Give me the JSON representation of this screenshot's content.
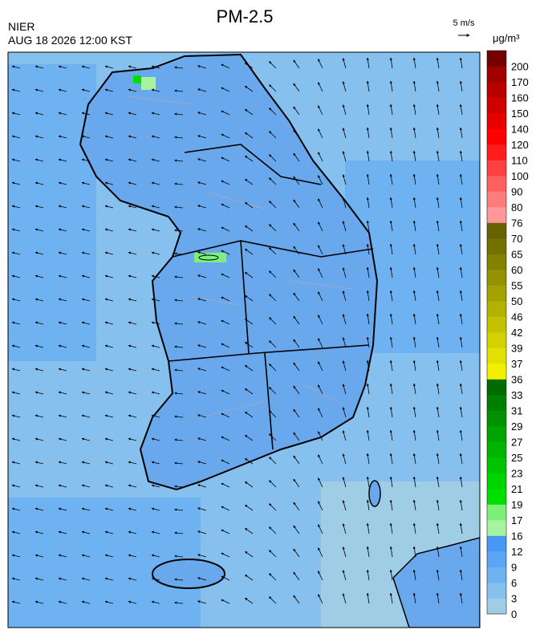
{
  "header": {
    "title": "PM-2.5",
    "agency": "NIER",
    "timestamp": "AUG 18 2026 12:00 KST",
    "wind_scale": "5 m/s",
    "unit": "μg/m³"
  },
  "colorbar": {
    "labels": [
      0,
      3,
      6,
      9,
      12,
      16,
      17,
      19,
      21,
      23,
      25,
      27,
      29,
      31,
      33,
      36,
      37,
      39,
      42,
      46,
      50,
      55,
      60,
      65,
      70,
      76,
      80,
      90,
      100,
      110,
      120,
      140,
      150,
      160,
      170,
      200
    ],
    "colors": [
      "#9fcde6",
      "#86c0ee",
      "#6eb2f2",
      "#5aa5f4",
      "#4698f4",
      "#a6f3a0",
      "#7cf07a",
      "#00e000",
      "#00d400",
      "#00c400",
      "#00b400",
      "#00a400",
      "#009200",
      "#008000",
      "#006c00",
      "#f2f000",
      "#e2e000",
      "#d2d200",
      "#c4c200",
      "#b4b200",
      "#a4a200",
      "#949200",
      "#848000",
      "#747000",
      "#6a6200",
      "#ff9898",
      "#ff7c7c",
      "#ff6060",
      "#ff4040",
      "#ff1c1c",
      "#ff0000",
      "#e80000",
      "#d00000",
      "#b80000",
      "#a00000",
      "#740000"
    ]
  }
}
